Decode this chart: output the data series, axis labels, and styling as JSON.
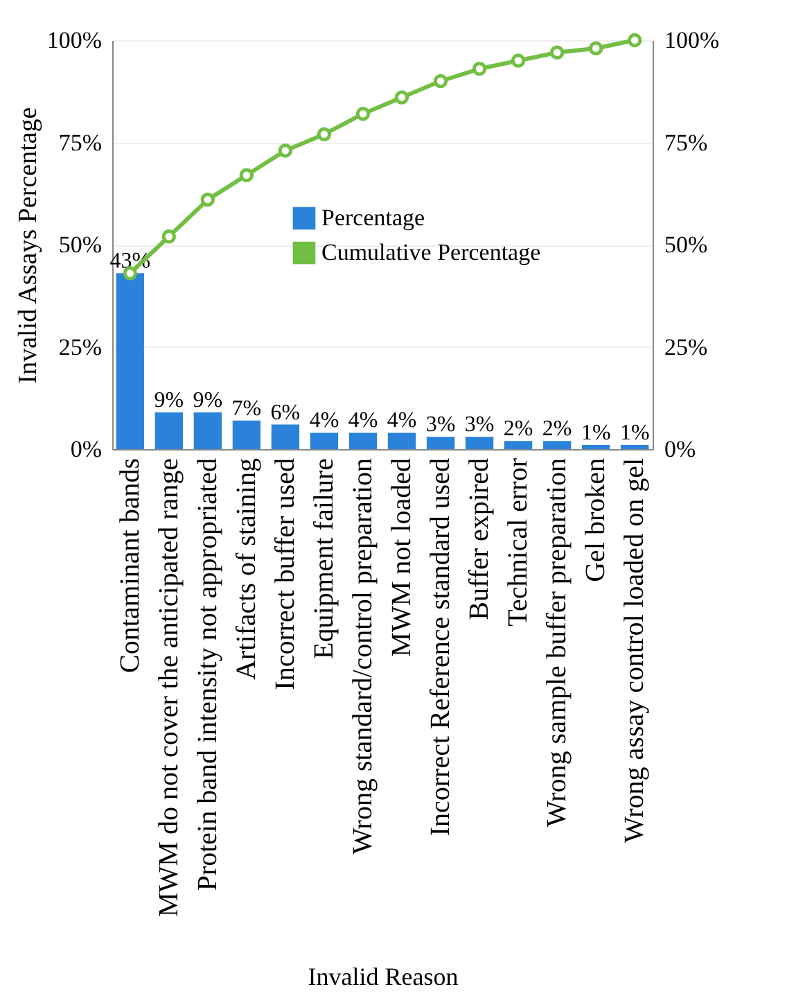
{
  "chart_data": {
    "type": "bar",
    "xlabel": "Invalid Reason",
    "ylabel": "Invalid Assays Percentage",
    "categories": [
      "Contaminant bands",
      "MWM do not cover the anticipated range",
      "Protein band intensity not appropriated",
      "Artifacts of staining",
      "Incorrect buffer used",
      "Equipment failure",
      "Wrong standard/control preparation",
      "MWM not loaded",
      "Incorrect Reference standard used",
      "Buffer expired",
      "Technical error",
      "Wrong sample buffer preparation",
      "Gel broken",
      "Wrong assay control loaded on gel"
    ],
    "series": [
      {
        "name": "Percentage",
        "color": "#2b82db",
        "values": [
          43,
          9,
          9,
          7,
          6,
          4,
          4,
          4,
          3,
          3,
          2,
          2,
          1,
          1
        ],
        "value_labels": [
          "43%",
          "9%",
          "9%",
          "7%",
          "6%",
          "4%",
          "4%",
          "4%",
          "3%",
          "3%",
          "2%",
          "2%",
          "1%",
          "1%"
        ]
      },
      {
        "name": "Cumulative Percentage",
        "type": "line",
        "axis": "y2",
        "color": "#72bf44",
        "marker": "circle",
        "values": [
          43,
          52,
          61,
          67,
          73,
          77,
          82,
          86,
          90,
          93,
          95,
          97,
          98,
          100
        ]
      }
    ],
    "ylim": [
      0,
      100
    ],
    "yticks": [
      {
        "value": 0,
        "label": "0%"
      },
      {
        "value": 25,
        "label": "25%"
      },
      {
        "value": 50,
        "label": "50%"
      },
      {
        "value": 75,
        "label": "75%"
      },
      {
        "value": 100,
        "label": "100%"
      }
    ],
    "y2lim": [
      0,
      100
    ],
    "y2ticks": [
      {
        "value": 0,
        "label": "0%"
      },
      {
        "value": 25,
        "label": "25%"
      },
      {
        "value": 50,
        "label": "50%"
      },
      {
        "value": 75,
        "label": "75%"
      },
      {
        "value": 100,
        "label": "100%"
      }
    ],
    "grid": "y",
    "legend": "center"
  }
}
